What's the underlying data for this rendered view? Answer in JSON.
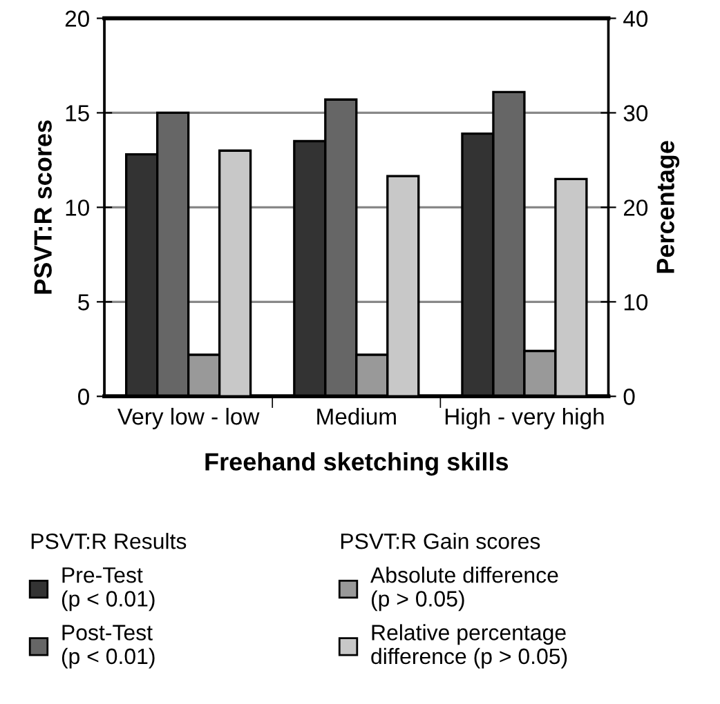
{
  "chart_data": {
    "type": "bar",
    "xlabel": "Freehand sketching skills",
    "ylabel": "PSVT:R scores",
    "y2label": "Percentage",
    "categories": [
      "Very low - low",
      "Medium",
      "High - very high"
    ],
    "series": [
      {
        "name": "Pre-Test\n(p < 0.01)",
        "color": "#333333",
        "values": [
          12.8,
          13.5,
          13.9
        ]
      },
      {
        "name": "Post-Test\n(p < 0.01)",
        "color": "#666666",
        "values": [
          15.0,
          15.7,
          16.1
        ]
      },
      {
        "name": "Absolute difference\n(p > 0.05)",
        "color": "#999999",
        "values": [
          2.2,
          2.2,
          2.4
        ]
      },
      {
        "name": "Relative percentage\ndifference (p > 0.05)",
        "color": "#c8c8c8",
        "values": [
          26.0,
          23.3,
          23.0
        ],
        "axis": "y2"
      }
    ],
    "ylim": [
      0,
      20
    ],
    "yticks": [
      0,
      5,
      10,
      15,
      20
    ],
    "y2lim": [
      0,
      40
    ],
    "y2ticks": [
      0,
      10,
      20,
      30,
      40
    ],
    "grid": "y",
    "legend": "bottom",
    "annotations": [
      "PSVT:R Results",
      "PSVT:R Gain scores"
    ]
  }
}
